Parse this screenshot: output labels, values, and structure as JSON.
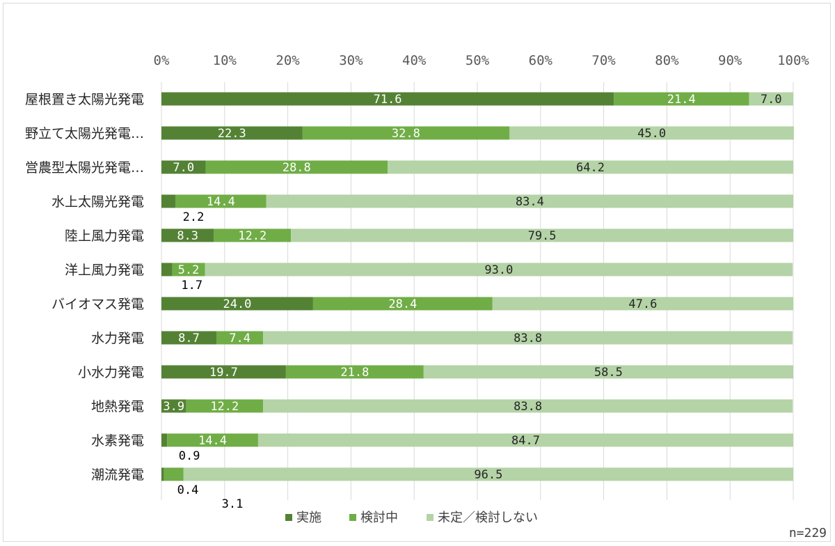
{
  "chart_data": {
    "type": "bar",
    "orientation": "horizontal-stacked-100",
    "xlim": [
      0,
      100
    ],
    "x_ticks": [
      "0%",
      "10%",
      "20%",
      "30%",
      "40%",
      "50%",
      "60%",
      "70%",
      "80%",
      "90%",
      "100%"
    ],
    "categories": [
      "屋根置き太陽光発電",
      "野立て太陽光発電…",
      "営農型太陽光発電…",
      "水上太陽光発電",
      "陸上風力発電",
      "洋上風力発電",
      "バイオマス発電",
      "水力発電",
      "小水力発電",
      "地熱発電",
      "水素発電",
      "潮流発電"
    ],
    "series": [
      {
        "name": "実施",
        "color": "#548235",
        "values": [
          71.6,
          22.3,
          7.0,
          2.2,
          8.3,
          1.7,
          24.0,
          8.7,
          19.7,
          3.9,
          0.9,
          0.4
        ]
      },
      {
        "name": "検討中",
        "color": "#70ad47",
        "values": [
          21.4,
          32.8,
          28.8,
          14.4,
          12.2,
          5.2,
          28.4,
          7.4,
          21.8,
          12.2,
          14.4,
          3.1
        ]
      },
      {
        "name": "未定／検討しない",
        "color": "#b4d3a6",
        "values": [
          7.0,
          45.0,
          64.2,
          83.4,
          79.5,
          93.0,
          47.6,
          83.8,
          58.5,
          83.8,
          84.7,
          96.5
        ]
      }
    ],
    "data_labels": [
      [
        "71.6",
        "21.4",
        "7.0"
      ],
      [
        "22.3",
        "32.8",
        "45.0"
      ],
      [
        "7.0",
        "28.8",
        "64.2"
      ],
      [
        "2.2",
        "14.4",
        "83.4"
      ],
      [
        "8.3",
        "12.2",
        "79.5"
      ],
      [
        "1.7",
        "5.2",
        "93.0"
      ],
      [
        "24.0",
        "28.4",
        "47.6"
      ],
      [
        "8.7",
        "7.4",
        "83.8"
      ],
      [
        "19.7",
        "21.8",
        "58.5"
      ],
      [
        "3.9",
        "12.2",
        "83.8"
      ],
      [
        "0.9",
        "14.4",
        "84.7"
      ],
      [
        "0.4",
        "3.1",
        "96.5"
      ]
    ],
    "label_placement": [
      [
        "inside",
        "inside",
        "inside"
      ],
      [
        "inside",
        "inside",
        "inside"
      ],
      [
        "inside",
        "inside",
        "inside"
      ],
      [
        "below",
        "inside",
        "inside"
      ],
      [
        "inside",
        "inside",
        "inside"
      ],
      [
        "below",
        "inside",
        "inside"
      ],
      [
        "inside",
        "inside",
        "inside"
      ],
      [
        "inside",
        "inside",
        "inside"
      ],
      [
        "inside",
        "inside",
        "inside"
      ],
      [
        "inside",
        "inside",
        "inside"
      ],
      [
        "below",
        "inside",
        "inside"
      ],
      [
        "below",
        "below",
        "inside"
      ]
    ],
    "legend_position": "bottom",
    "grid": true,
    "note": "n=229"
  }
}
